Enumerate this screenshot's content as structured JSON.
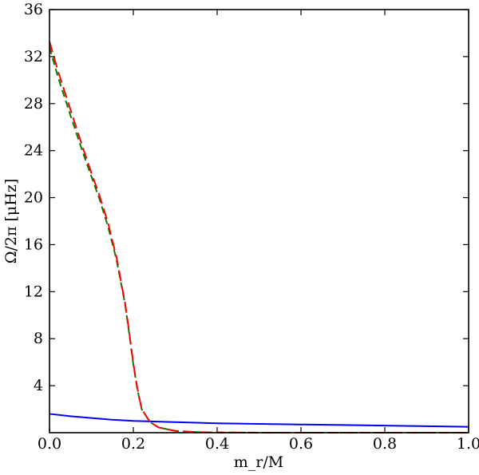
{
  "chart_data": {
    "type": "line",
    "title": "",
    "xlabel": "m_r/M",
    "ylabel": "Ω/2π [μHz]",
    "xlim": [
      0.0,
      1.0
    ],
    "ylim": [
      0,
      36
    ],
    "x_ticks": [
      0.0,
      0.2,
      0.4,
      0.6,
      0.8,
      1.0
    ],
    "x_tick_labels": [
      "0.0",
      "0.2",
      "0.4",
      "0.6",
      "0.8",
      "1.0"
    ],
    "y_ticks": [
      4,
      8,
      12,
      16,
      20,
      24,
      28,
      32,
      36
    ],
    "y_tick_labels": [
      "4",
      "8",
      "12",
      "16",
      "20",
      "24",
      "28",
      "32",
      "36"
    ],
    "grid": false,
    "legend": "none",
    "series": [
      {
        "color": "#0000ff",
        "style": "solid",
        "x": [
          0.0,
          0.05,
          0.1,
          0.15,
          0.2,
          0.25,
          0.3,
          0.4,
          0.5,
          0.6,
          0.7,
          0.8,
          0.9,
          1.0
        ],
        "y": [
          1.6,
          1.4,
          1.25,
          1.1,
          1.0,
          0.95,
          0.9,
          0.8,
          0.75,
          0.7,
          0.65,
          0.6,
          0.55,
          0.5
        ]
      },
      {
        "color": "#008000",
        "style": "dashed",
        "x": [
          0.0,
          0.02,
          0.05,
          0.08,
          0.1,
          0.12,
          0.14,
          0.16,
          0.18,
          0.19,
          0.2,
          0.21,
          0.22,
          0.24,
          0.26,
          0.3,
          0.35,
          0.4,
          0.5,
          0.6,
          0.8,
          1.0
        ],
        "y": [
          32.8,
          30.3,
          27.0,
          23.8,
          21.8,
          19.8,
          17.5,
          14.7,
          11.0,
          8.5,
          5.8,
          3.6,
          2.0,
          0.9,
          0.45,
          0.15,
          0.05,
          0.02,
          0.0,
          0.0,
          0.0,
          0.0
        ]
      },
      {
        "color": "#ff0000",
        "style": "dashed",
        "x": [
          0.0,
          0.02,
          0.05,
          0.08,
          0.1,
          0.12,
          0.14,
          0.16,
          0.18,
          0.19,
          0.2,
          0.21,
          0.22,
          0.24,
          0.26,
          0.3,
          0.35,
          0.4,
          0.5,
          0.6,
          0.8,
          1.0
        ],
        "y": [
          33.3,
          30.8,
          27.5,
          24.2,
          22.1,
          20.1,
          17.8,
          14.9,
          11.1,
          8.6,
          5.9,
          3.7,
          2.0,
          0.9,
          0.45,
          0.15,
          0.05,
          0.02,
          0.0,
          0.0,
          0.0,
          0.0
        ]
      }
    ]
  }
}
